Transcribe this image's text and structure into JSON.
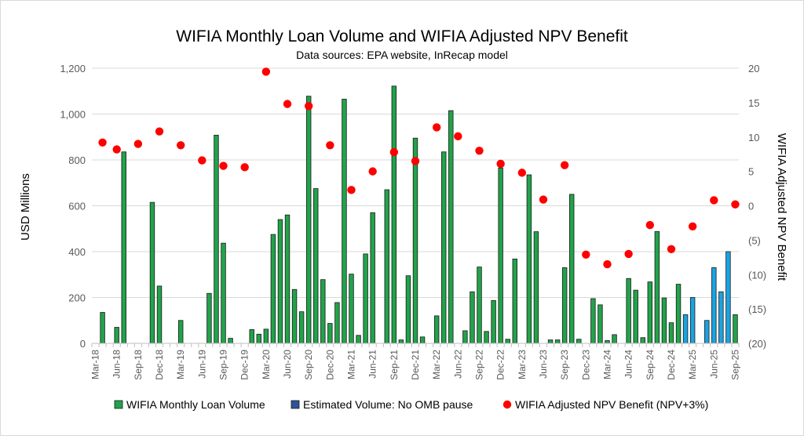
{
  "chart_data": {
    "type": "bar",
    "title": "WIFIA Monthly Loan Volume and WIFIA Adjusted NPV Benefit",
    "subtitle": "Data sources: EPA website, InRecap model",
    "ylabel": "USD Millions",
    "y2label": "WIFIA Adjusted NPV Benefit",
    "ylim": [
      0,
      1200
    ],
    "y2lim": [
      -20,
      20
    ],
    "y_ticks": [
      "0",
      "200",
      "400",
      "600",
      "800",
      "1,000",
      "1,200"
    ],
    "y2_ticks": [
      "(20)",
      "(15)",
      "(10)",
      "(5)",
      "0",
      "5",
      "10",
      "15",
      "20"
    ],
    "x_ticks": [
      "Mar-18",
      "Jun-18",
      "Sep-18",
      "Dec-18",
      "Mar-19",
      "Jun-19",
      "Sep-19",
      "Dec-19",
      "Mar-20",
      "Jun-20",
      "Sep-20",
      "Dec-20",
      "Mar-21",
      "Jun-21",
      "Sep-21",
      "Dec-21",
      "Mar-22",
      "Jun-22",
      "Sep-22",
      "Dec-22",
      "Mar-23",
      "Jun-23",
      "Sep-23",
      "Dec-23",
      "Mar-24",
      "Jun-24",
      "Sep-24",
      "Dec-24",
      "Mar-25",
      "Jun-25",
      "Sep-25"
    ],
    "months_start": "Mar-18",
    "series": [
      {
        "name": "WIFIA Monthly Loan Volume",
        "color": "#21a34a",
        "points": [
          [
            "Apr-18",
            135
          ],
          [
            "Jun-18",
            70
          ],
          [
            "Jul-18",
            835
          ],
          [
            "Nov-18",
            615
          ],
          [
            "Dec-18",
            250
          ],
          [
            "Mar-19",
            100
          ],
          [
            "Jul-19",
            218
          ],
          [
            "Aug-19",
            908
          ],
          [
            "Sep-19",
            437
          ],
          [
            "Oct-19",
            22
          ],
          [
            "Jan-20",
            60
          ],
          [
            "Feb-20",
            40
          ],
          [
            "Mar-20",
            62
          ],
          [
            "Apr-20",
            475
          ],
          [
            "May-20",
            540
          ],
          [
            "Jun-20",
            560
          ],
          [
            "Jul-20",
            235
          ],
          [
            "Aug-20",
            138
          ],
          [
            "Sep-20",
            1078
          ],
          [
            "Oct-20",
            675
          ],
          [
            "Nov-20",
            278
          ],
          [
            "Dec-20",
            87
          ],
          [
            "Jan-21",
            178
          ],
          [
            "Feb-21",
            1065
          ],
          [
            "Mar-21",
            302
          ],
          [
            "Apr-21",
            35
          ],
          [
            "May-21",
            390
          ],
          [
            "Jun-21",
            570
          ],
          [
            "Aug-21",
            670
          ],
          [
            "Sep-21",
            1122
          ],
          [
            "Oct-21",
            15
          ],
          [
            "Nov-21",
            295
          ],
          [
            "Dec-21",
            895
          ],
          [
            "Jan-22",
            28
          ],
          [
            "Mar-22",
            120
          ],
          [
            "Apr-22",
            835
          ],
          [
            "May-22",
            1015
          ],
          [
            "Jul-22",
            55
          ],
          [
            "Aug-22",
            225
          ],
          [
            "Sep-22",
            333
          ],
          [
            "Oct-22",
            52
          ],
          [
            "Nov-22",
            187
          ],
          [
            "Dec-22",
            765
          ],
          [
            "Jan-23",
            18
          ],
          [
            "Feb-23",
            368
          ],
          [
            "Apr-23",
            735
          ],
          [
            "May-23",
            487
          ],
          [
            "Jul-23",
            15
          ],
          [
            "Aug-23",
            15
          ],
          [
            "Sep-23",
            330
          ],
          [
            "Oct-23",
            650
          ],
          [
            "Nov-23",
            18
          ],
          [
            "Jan-24",
            195
          ],
          [
            "Feb-24",
            168
          ],
          [
            "Mar-24",
            12
          ],
          [
            "Apr-24",
            38
          ],
          [
            "Jun-24",
            283
          ],
          [
            "Jul-24",
            232
          ],
          [
            "Aug-24",
            25
          ],
          [
            "Sep-24",
            268
          ],
          [
            "Oct-24",
            488
          ],
          [
            "Nov-24",
            198
          ],
          [
            "Dec-24",
            90
          ],
          [
            "Jan-25",
            258
          ],
          [
            "Sep-25",
            125
          ]
        ]
      },
      {
        "name": "Estimated Volume: No OMB pause",
        "color": "#1aa3e0",
        "legend_color": "#2e5597",
        "points": [
          [
            "Feb-25",
            125
          ],
          [
            "Mar-25",
            200
          ],
          [
            "May-25",
            100
          ],
          [
            "Jun-25",
            330
          ],
          [
            "Jul-25",
            225
          ],
          [
            "Aug-25",
            400
          ]
        ]
      },
      {
        "name": "WIFIA Adjusted NPV Benefit (NPV+3%)",
        "color": "#ff0000",
        "axis": "right",
        "points": [
          [
            "Apr-18",
            9.2
          ],
          [
            "Jun-18",
            8.2
          ],
          [
            "Sep-18",
            9.0
          ],
          [
            "Dec-18",
            10.8
          ],
          [
            "Mar-19",
            8.8
          ],
          [
            "Jun-19",
            6.6
          ],
          [
            "Sep-19",
            5.8
          ],
          [
            "Dec-19",
            5.6
          ],
          [
            "Mar-20",
            19.5
          ],
          [
            "Jun-20",
            14.8
          ],
          [
            "Sep-20",
            14.5
          ],
          [
            "Dec-20",
            8.8
          ],
          [
            "Mar-21",
            2.3
          ],
          [
            "Jun-21",
            5.0
          ],
          [
            "Sep-21",
            7.8
          ],
          [
            "Dec-21",
            6.5
          ],
          [
            "Mar-22",
            11.4
          ],
          [
            "Jun-22",
            10.1
          ],
          [
            "Sep-22",
            8.0
          ],
          [
            "Dec-22",
            6.1
          ],
          [
            "Mar-23",
            4.8
          ],
          [
            "Jun-23",
            0.9
          ],
          [
            "Sep-23",
            5.9
          ],
          [
            "Dec-23",
            -7.1
          ],
          [
            "Mar-24",
            -8.5
          ],
          [
            "Jun-24",
            -7.0
          ],
          [
            "Sep-24",
            -2.8
          ],
          [
            "Dec-24",
            -6.3
          ],
          [
            "Mar-25",
            -3.0
          ],
          [
            "Jun-25",
            0.8
          ],
          [
            "Sep-25",
            0.2
          ]
        ]
      }
    ],
    "legend": [
      {
        "label": "WIFIA Monthly Loan Volume",
        "color": "#21a34a",
        "shape": "square"
      },
      {
        "label": "Estimated Volume: No OMB pause",
        "color": "#2e5597",
        "shape": "square"
      },
      {
        "label": "WIFIA Adjusted NPV Benefit (NPV+3%)",
        "color": "#ff0000",
        "shape": "circle"
      }
    ],
    "legend_position": "bottom",
    "grid": true
  }
}
